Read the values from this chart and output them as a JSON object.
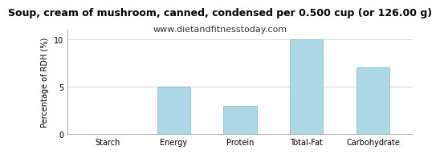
{
  "title": "Soup, cream of mushroom, canned, condensed per 0.500 cup (or 126.00 g)",
  "subtitle": "www.dietandfitnesstoday.com",
  "categories": [
    "Starch",
    "Energy",
    "Protein",
    "Total-Fat",
    "Carbohydrate"
  ],
  "values": [
    0,
    5,
    3,
    10,
    7
  ],
  "bar_color": "#add8e6",
  "bar_edge_color": "#7bb8cc",
  "ylabel": "Percentage of RDH (%)",
  "ylim": [
    0,
    11
  ],
  "yticks": [
    0,
    5,
    10
  ],
  "grid_color": "#cccccc",
  "background_color": "#ffffff",
  "title_fontsize": 9,
  "subtitle_fontsize": 8,
  "ylabel_fontsize": 7,
  "tick_fontsize": 7,
  "bar_width": 0.5
}
